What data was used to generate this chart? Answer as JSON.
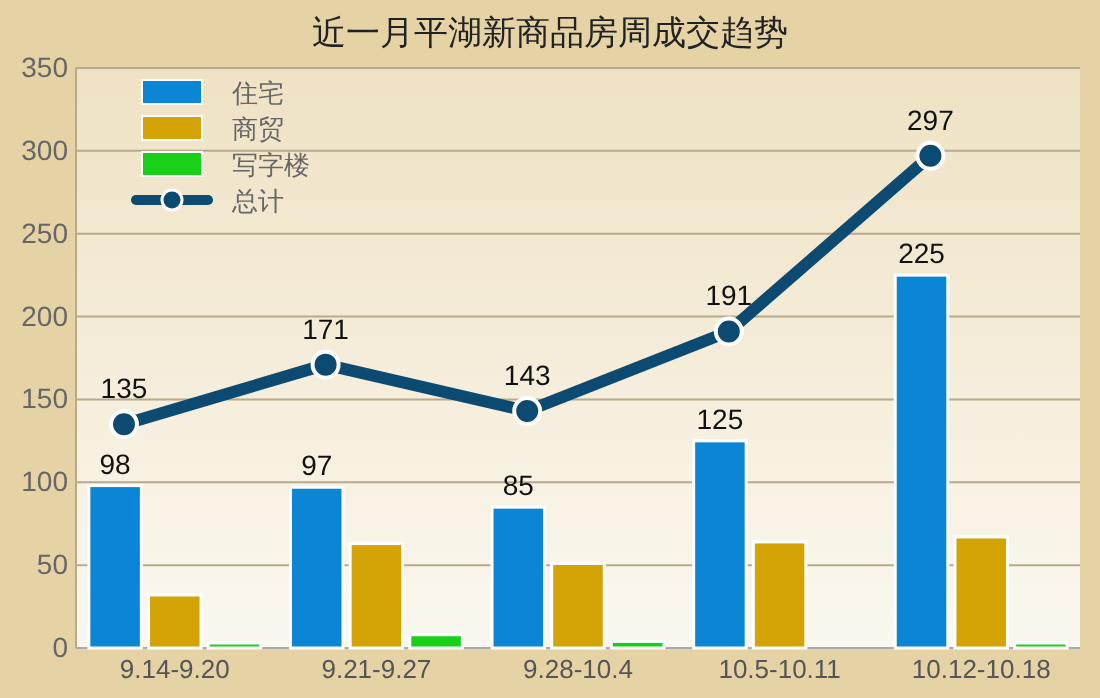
{
  "chart_data": {
    "type": "bar",
    "title": "近一月平湖新商品房周成交趋势",
    "categories": [
      "9.14-9.20",
      "9.21-9.27",
      "9.28-10.4",
      "10.5-10.11",
      "10.12-10.18"
    ],
    "series": [
      {
        "name": "住宅",
        "color": "#0b86d4",
        "values": [
          98,
          97,
          85,
          125,
          225
        ],
        "value_labels": [
          "98",
          "97",
          "85",
          "125",
          "225"
        ]
      },
      {
        "name": "商贸",
        "color": "#d4a406",
        "values": [
          32,
          63,
          51,
          64,
          67
        ]
      },
      {
        "name": "写字楼",
        "color": "#18d018",
        "values": [
          3,
          8,
          4,
          0,
          3
        ]
      },
      {
        "name": "总计",
        "type": "line",
        "color": "#0d4a72",
        "values": [
          135,
          171,
          143,
          191,
          297
        ],
        "value_labels": [
          "135",
          "171",
          "143",
          "191",
          "297"
        ],
        "marker": "circle"
      }
    ],
    "ylim": [
      0,
      350
    ],
    "yticks": [
      0,
      50,
      100,
      150,
      200,
      250,
      300,
      350
    ],
    "grid": "y",
    "legend": "top left"
  }
}
